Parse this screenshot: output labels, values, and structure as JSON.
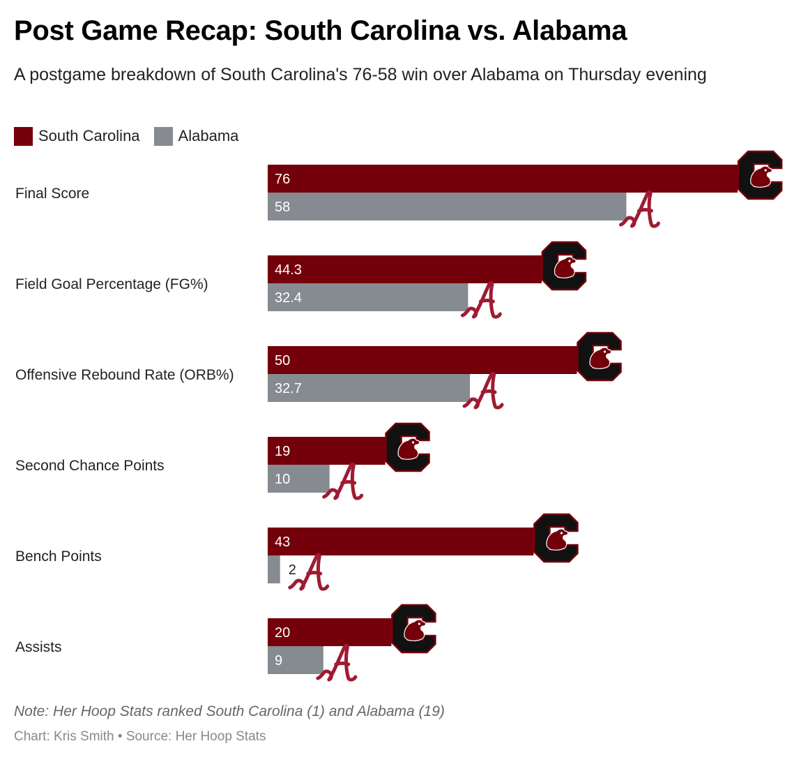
{
  "title": "Post Game Recap: South Carolina vs. Alabama",
  "subtitle": "A postgame breakdown of South Carolina's 76-58 win over Alabama on Thursday evening",
  "note": "Note: Her Hoop Stats ranked South Carolina (1) and Alabama (19)",
  "credit": {
    "chart_by": "Chart: Kris Smith",
    "separator": "•",
    "source": "Source: Her Hoop Stats"
  },
  "colors": {
    "south_carolina": "#73000a",
    "alabama": "#868b91",
    "label_on_bar": "#ffffff",
    "label_outside": "#222222"
  },
  "icons": {
    "south_carolina_logo": "gamecock-block-c-logo",
    "alabama_logo": "script-a-logo"
  },
  "chart_data": {
    "type": "bar",
    "orientation": "horizontal",
    "categories": [
      "Final Score",
      "Field Goal Percentage (FG%)",
      "Offensive Rebound Rate (ORB%)",
      "Second Chance Points",
      "Bench Points",
      "Assists"
    ],
    "series": [
      {
        "name": "South Carolina",
        "values": [
          76,
          44.3,
          50,
          19,
          43,
          20
        ]
      },
      {
        "name": "Alabama",
        "values": [
          58,
          32.4,
          32.7,
          10,
          2,
          9
        ]
      }
    ],
    "value_labels": {
      "South Carolina": [
        "76",
        "44.3",
        "50",
        "19",
        "43",
        "20"
      ],
      "Alabama": [
        "58",
        "32.4",
        "32.7",
        "10",
        "2",
        "9"
      ]
    },
    "legend_position": "top-left",
    "grid": false,
    "axes_visible": false
  }
}
